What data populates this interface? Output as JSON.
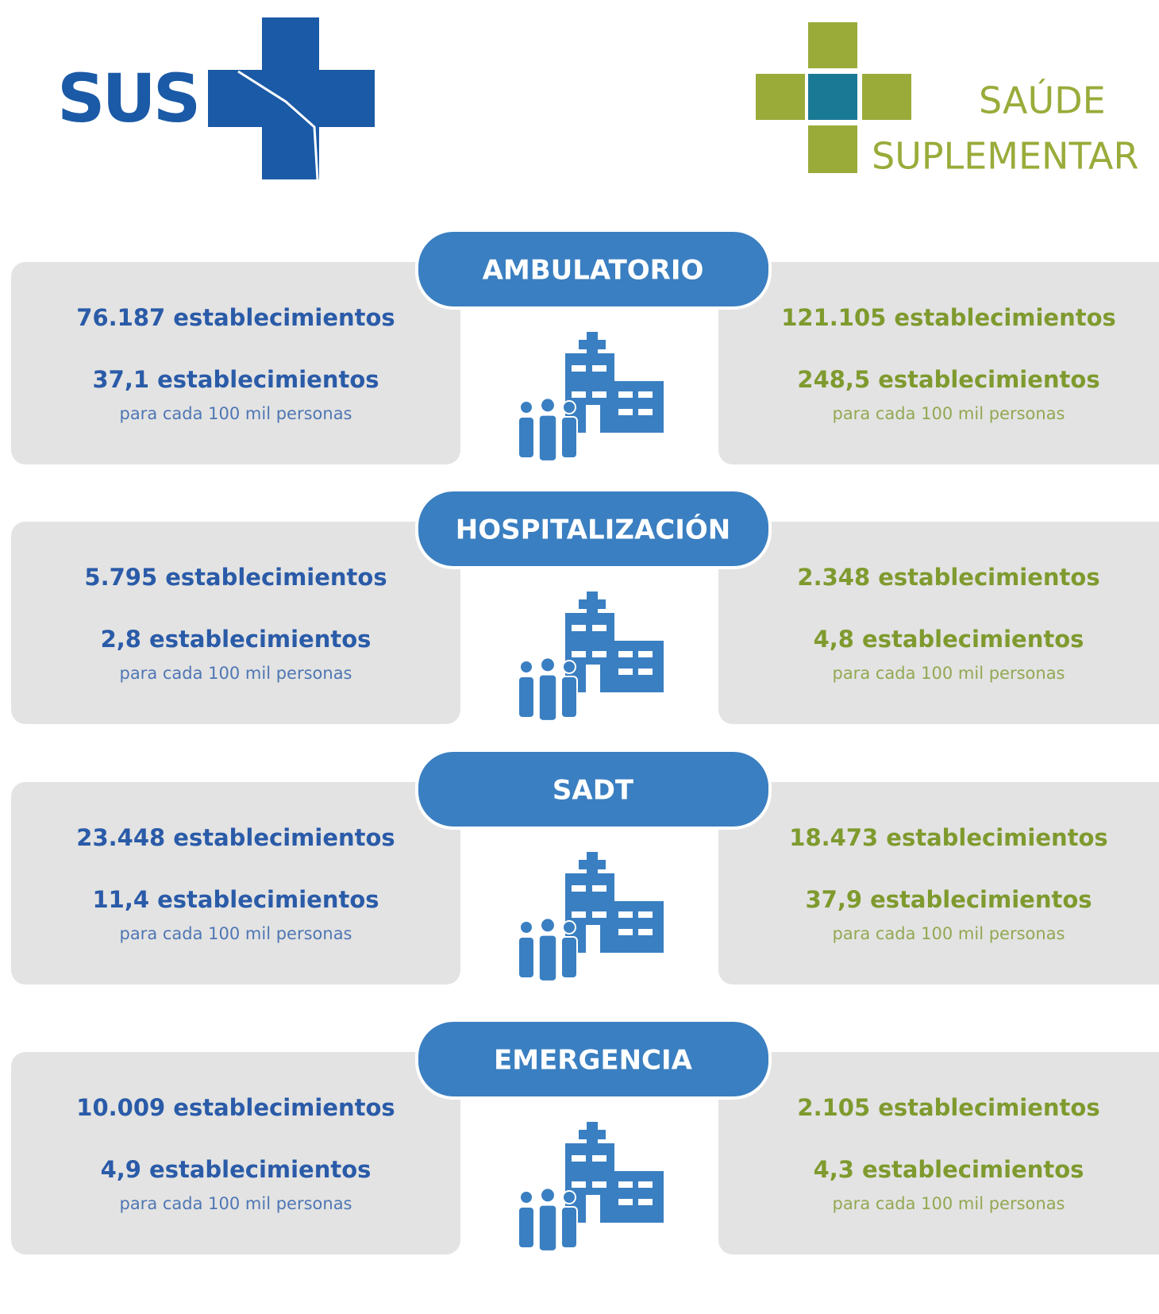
{
  "logos": {
    "left": "SUS",
    "right": [
      "SAÚDE",
      "SUPLEMENTAR"
    ]
  },
  "sections": [
    {
      "title": "AMBULATORIO",
      "left": {
        "total": "76.187 establecimientos",
        "rate": "37,1 establecimientos",
        "note": "para cada 100 mil personas"
      },
      "right": {
        "total": "121.105 establecimientos",
        "rate": "248,5 establecimientos",
        "note": "para cada 100 mil personas"
      }
    },
    {
      "title": "HOSPITALIZACIÓN",
      "left": {
        "total": "5.795 establecimientos",
        "rate": "2,8 establecimientos",
        "note": "para cada 100 mil personas"
      },
      "right": {
        "total": "2.348 establecimientos",
        "rate": "4,8 establecimientos",
        "note": "para cada 100 mil personas"
      }
    },
    {
      "title": "SADT",
      "left": {
        "total": "23.448 establecimientos",
        "rate": "11,4 establecimientos",
        "note": "para cada 100 mil personas"
      },
      "right": {
        "total": "18.473 establecimientos",
        "rate": "37,9 establecimientos",
        "note": "para cada 100 mil personas"
      }
    },
    {
      "title": "EMERGENCIA",
      "left": {
        "total": "10.009 establecimientos",
        "rate": "4,9 establecimientos",
        "note": "para cada 100 mil personas"
      },
      "right": {
        "total": "2.105 establecimientos",
        "rate": "4,3 establecimientos",
        "note": "para cada 100 mil personas"
      }
    }
  ]
}
